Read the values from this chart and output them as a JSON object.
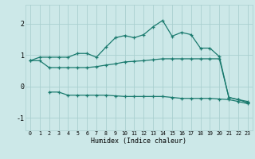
{
  "title": "",
  "xlabel": "Humidex (Indice chaleur)",
  "bg_color": "#cce8e8",
  "grid_color": "#aacfcf",
  "line_color": "#1a7a6e",
  "xlim": [
    -0.5,
    23.5
  ],
  "ylim": [
    -1.4,
    2.6
  ],
  "xticks": [
    0,
    1,
    2,
    3,
    4,
    5,
    6,
    7,
    8,
    9,
    10,
    11,
    12,
    13,
    14,
    15,
    16,
    17,
    18,
    19,
    20,
    21,
    22,
    23
  ],
  "yticks": [
    -1,
    0,
    1,
    2
  ],
  "line1_x": [
    0,
    1,
    2,
    3,
    4,
    5,
    6,
    7,
    8,
    9,
    10,
    11,
    12,
    13,
    14,
    15,
    16,
    17,
    18,
    19,
    20,
    21,
    22,
    23
  ],
  "line1_y": [
    0.82,
    0.93,
    0.93,
    0.93,
    0.93,
    1.05,
    1.05,
    0.93,
    1.25,
    1.55,
    1.62,
    1.55,
    1.65,
    1.9,
    2.1,
    1.6,
    1.72,
    1.65,
    1.22,
    1.22,
    0.95,
    -0.35,
    -0.42,
    -0.48
  ],
  "line2_x": [
    0,
    1,
    2,
    3,
    4,
    5,
    6,
    7,
    8,
    9,
    10,
    11,
    12,
    13,
    14,
    15,
    16,
    17,
    18,
    19,
    20,
    21,
    22,
    23
  ],
  "line2_y": [
    0.82,
    0.82,
    0.6,
    0.6,
    0.6,
    0.6,
    0.6,
    0.63,
    0.68,
    0.72,
    0.78,
    0.8,
    0.82,
    0.85,
    0.88,
    0.88,
    0.88,
    0.88,
    0.88,
    0.88,
    0.88,
    -0.35,
    -0.42,
    -0.52
  ],
  "line3_x": [
    2,
    3,
    4,
    5,
    6,
    7,
    8,
    9,
    10,
    11,
    12,
    13,
    14,
    15,
    16,
    17,
    18,
    19,
    20,
    21,
    22,
    23
  ],
  "line3_y": [
    -0.18,
    -0.18,
    -0.28,
    -0.28,
    -0.28,
    -0.28,
    -0.28,
    -0.3,
    -0.32,
    -0.32,
    -0.32,
    -0.32,
    -0.32,
    -0.35,
    -0.38,
    -0.38,
    -0.38,
    -0.38,
    -0.4,
    -0.42,
    -0.48,
    -0.55
  ]
}
